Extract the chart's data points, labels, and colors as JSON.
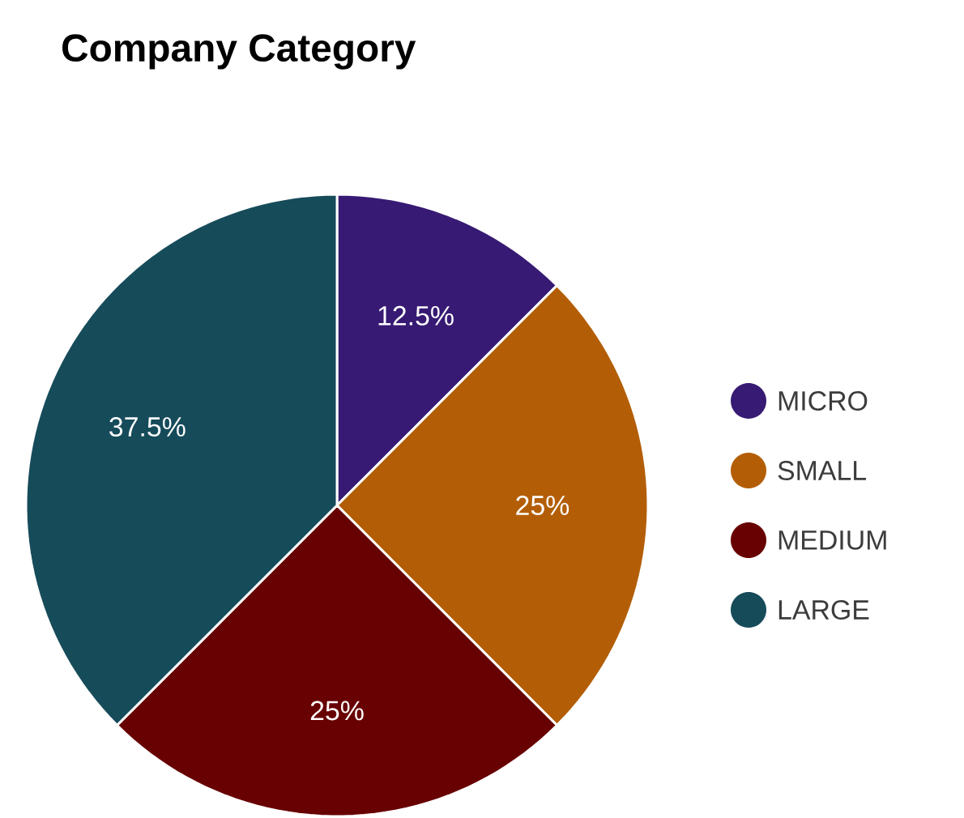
{
  "chart_data": {
    "type": "pie",
    "title": "Company Category",
    "categories": [
      "MICRO",
      "SMALL",
      "MEDIUM",
      "LARGE"
    ],
    "values": [
      12.5,
      25,
      25,
      37.5
    ],
    "value_labels": [
      "12.5%",
      "25%",
      "25%",
      "37.5%"
    ],
    "colors": [
      "#371a73",
      "#b35e07",
      "#680101",
      "#164b5a"
    ],
    "legend": "right"
  }
}
